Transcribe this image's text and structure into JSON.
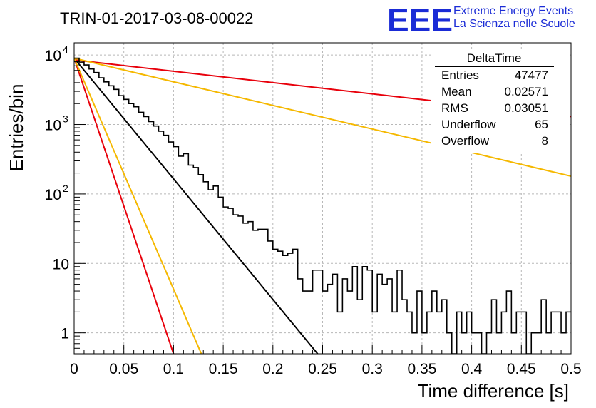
{
  "chart_data": {
    "type": "line",
    "title": "TRIN-01-2017-03-08-00022",
    "xlabel": "Time difference [s]",
    "ylabel": "Entries/bin",
    "xlim": [
      0,
      0.5
    ],
    "ylim": [
      0.5,
      15000
    ],
    "y_scale": "log",
    "grid": true,
    "x_ticks": [
      {
        "v": 0,
        "label": "0"
      },
      {
        "v": 0.05,
        "label": "0.05"
      },
      {
        "v": 0.1,
        "label": "0.1"
      },
      {
        "v": 0.15,
        "label": "0.15"
      },
      {
        "v": 0.2,
        "label": "0.2"
      },
      {
        "v": 0.25,
        "label": "0.25"
      },
      {
        "v": 0.3,
        "label": "0.3"
      },
      {
        "v": 0.35,
        "label": "0.35"
      },
      {
        "v": 0.4,
        "label": "0.4"
      },
      {
        "v": 0.45,
        "label": "0.45"
      },
      {
        "v": 0.5,
        "label": "0.5"
      }
    ],
    "y_ticks": [
      {
        "v": 1,
        "label": "1",
        "sup": ""
      },
      {
        "v": 10,
        "label": "10",
        "sup": ""
      },
      {
        "v": 100,
        "label": "10",
        "sup": "2"
      },
      {
        "v": 1000,
        "label": "10",
        "sup": "3"
      },
      {
        "v": 10000,
        "label": "10",
        "sup": "4"
      }
    ],
    "histogram": {
      "name": "DeltaTime",
      "bin_width": 0.005,
      "values": [
        9000,
        7900,
        7200,
        6300,
        5600,
        4700,
        4100,
        3600,
        3200,
        2600,
        2300,
        2000,
        1800,
        1500,
        1300,
        1100,
        950,
        800,
        700,
        560,
        480,
        350,
        380,
        260,
        240,
        190,
        150,
        115,
        130,
        90,
        65,
        62,
        50,
        48,
        38,
        40,
        30,
        31,
        31,
        21,
        16,
        15,
        13,
        14,
        16,
        6,
        4,
        4,
        8,
        8,
        4,
        5,
        7,
        2,
        6,
        4,
        9,
        3,
        9,
        8,
        2,
        7,
        5,
        6,
        2,
        8,
        3,
        2,
        1,
        4,
        1,
        2,
        4,
        2,
        3,
        1,
        0.5,
        2,
        1,
        2,
        1,
        1,
        0.5,
        1,
        3,
        1,
        2,
        4,
        1,
        2,
        2,
        0.5,
        1,
        1,
        3,
        1,
        2,
        2,
        1,
        2,
        2,
        1,
        1,
        2,
        1,
        2,
        3,
        1,
        1,
        2,
        3,
        2,
        4,
        1,
        1,
        0.5,
        1,
        3,
        2,
        1,
        1,
        3,
        2,
        1,
        1,
        1,
        2,
        2,
        1,
        1,
        1,
        1,
        2,
        1,
        1,
        2,
        1
      ]
    },
    "fit_lines": [
      {
        "color": "#000000",
        "y0": 9000,
        "x1": 0.245,
        "y1": 0.5
      },
      {
        "color": "#e8000b",
        "y0": 8500,
        "x1": 0.5,
        "y1": 1300
      },
      {
        "color": "#f5b800",
        "y0": 9000,
        "x1": 0.5,
        "y1": 180
      },
      {
        "color": "#e8000b",
        "y0": 9000,
        "x1": 0.1,
        "y1": 0.5
      },
      {
        "color": "#f5b800",
        "y0": 9000,
        "x1": 0.128,
        "y1": 0.5
      }
    ],
    "stats": {
      "title": "DeltaTime",
      "rows": [
        {
          "label": "Entries",
          "value": "47477"
        },
        {
          "label": "Mean",
          "value": "0.02571"
        },
        {
          "label": "RMS",
          "value": "0.03051"
        },
        {
          "label": "Underflow",
          "value": "65"
        },
        {
          "label": "Overflow",
          "value": "8"
        }
      ]
    }
  },
  "logo": {
    "mark": "EEE",
    "line1": "Extreme Energy Events",
    "line2": "La Scienza nelle Scuole"
  }
}
